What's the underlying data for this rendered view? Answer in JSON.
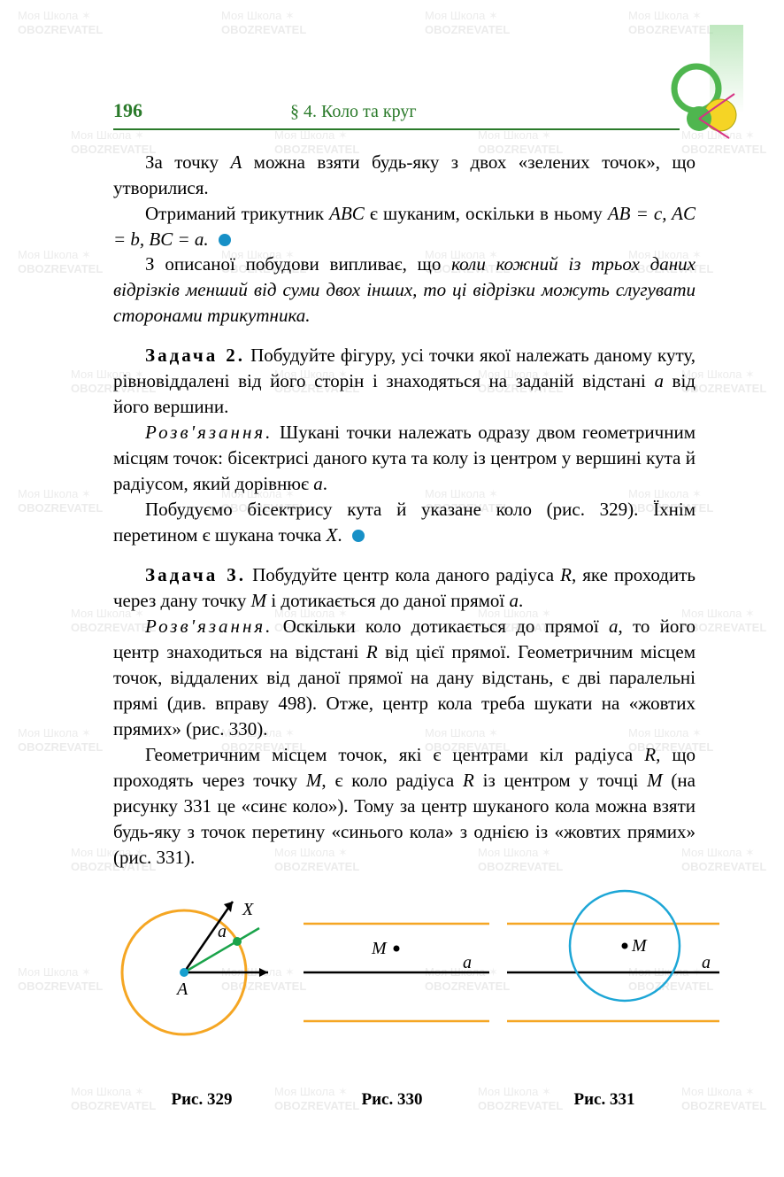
{
  "page": {
    "number": "196",
    "section": "§ 4. Коло та круг"
  },
  "watermark": {
    "text1": "Моя Школа",
    "text2": "OBOZREVATEL"
  },
  "body": {
    "p1a": "За точку ",
    "p1b": " можна взяти будь-яку з двох «зелених точок», що утворилися.",
    "p1_A": "A",
    "p2a": "Отриманий трикутник ",
    "p2_ABC": "ABC",
    "p2b": " є шуканим, оскільки в ньому ",
    "p2_eq": "AB = c,  AC = b,  BC = a.",
    "p3a": "З описаної побудови випливає, що ",
    "p3b": "коли кожний із трьох даних відрізків менший від суми двох інших, то ці відрізки можуть слугувати сторонами трикутника.",
    "task2_label": "Задача 2.",
    "task2_text": " Побудуйте фігуру, усі точки якої належать даному куту, рівновіддалені від його сторін і знаходяться на заданій відстані ",
    "task2_a": "a",
    "task2_text2": " від його вершини.",
    "sol_label": "Розв'язання.",
    "sol2_p1": " Шукані точки належать одразу двом геометричним місцям точок: бісектрисі даного кута та колу із центром у вершині кута й радіусом, який дорівнює ",
    "sol2_a": "a",
    "sol2_p1b": ".",
    "sol2_p2a": "Побудуємо бісектрису кута й указане коло (рис. 329). Їхнім перетином є шукана точка ",
    "sol2_X": "X",
    "sol2_p2b": ".",
    "task3_label": "Задача 3.",
    "task3_text": " Побудуйте центр кола даного радіуса ",
    "task3_R": "R",
    "task3_text2": ", яке проходить через дану точку ",
    "task3_M": "M",
    "task3_text3": " і дотикається до даної прямої ",
    "task3_a": "a",
    "task3_text4": ".",
    "sol3_p1": " Оскільки коло дотикається до прямої ",
    "sol3_a": "a",
    "sol3_p1b": ", то його центр знаходиться на відстані ",
    "sol3_R": "R",
    "sol3_p1c": " від цієї прямої. Геометричним місцем точок, віддалених від даної прямої на дану відстань, є дві паралельні прямі (див. вправу 498). Отже, центр кола треба шукати на «жовтих прямих» (рис. 330).",
    "sol3_p2a": "Геометричним місцем точок, які є центрами кіл радіуса ",
    "sol3_p2b": ", що проходять через точку ",
    "sol3_p2c": ", є коло радіуса ",
    "sol3_p2d": " із центром у точці ",
    "sol3_p2e": " (на рисунку 331 це «синє коло»). Тому за центр шуканого кола можна взяти будь-яку з точок перетину «синього кола» з однією із «жовтих прямих» (рис. 331)."
  },
  "figures": {
    "fig329": {
      "caption": "Рис. 329",
      "label_A": "A",
      "label_X": "X",
      "label_a": "a",
      "circle_color": "#f5a623",
      "bisector_color": "#1aa34a",
      "dot_color": "#1aa34a",
      "center_color": "#17a0cf",
      "line_color": "#000000"
    },
    "fig330": {
      "caption": "Рис. 330",
      "label_M": "M",
      "label_a": "a",
      "yellow": "#f5a623",
      "black": "#000000"
    },
    "fig331": {
      "caption": "Рис. 331",
      "label_M": "M",
      "label_a": "a",
      "yellow": "#f5a623",
      "black": "#000000",
      "blue": "#1da6d6"
    }
  },
  "corner": {
    "green": "#4fb64f",
    "yellow": "#f5d425",
    "magenta": "#d63384",
    "white": "#ffffff",
    "lightgreen": "#95d895"
  }
}
